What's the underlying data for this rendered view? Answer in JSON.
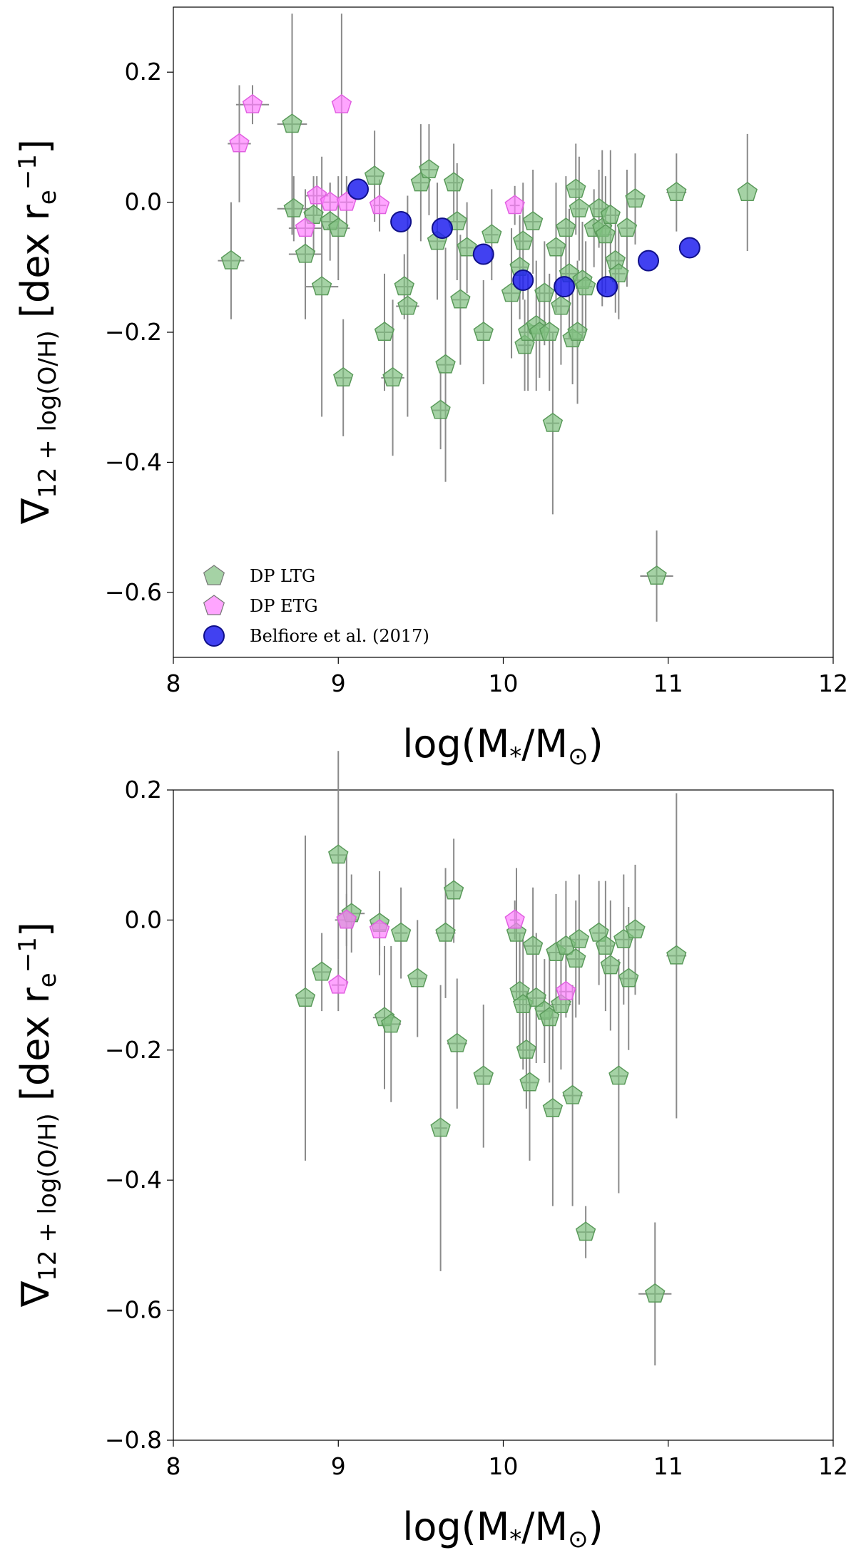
{
  "chart_data": [
    {
      "type": "scatter",
      "xlabel": {
        "main": "log(M",
        "sub1": "*",
        "mid": "/M",
        "sub2": "⊙",
        "close": ")"
      },
      "ylabel": {
        "nabla": "∇",
        "sub": "12 + log(O/H)",
        "bracket": " [dex r",
        "r_sub": "e",
        "r_sup": "−1",
        "close": "]"
      },
      "xlim": [
        8,
        12
      ],
      "ylim": [
        -0.7,
        0.3
      ],
      "xticks": [
        8,
        9,
        10,
        11,
        12
      ],
      "xtick_labels": [
        "8",
        "9",
        "10",
        "11",
        "12"
      ],
      "yticks": [
        0.2,
        0.0,
        -0.2,
        -0.4,
        -0.6
      ],
      "ytick_labels": [
        "0.2",
        "0.0",
        "−0.2",
        "−0.4",
        "−0.6"
      ],
      "legend": {
        "location": "lower-left",
        "entries": [
          {
            "label": "DP LTG",
            "marker": "pentagon",
            "color": "#7fbf7f"
          },
          {
            "label": "DP ETG",
            "marker": "pentagon",
            "color": "#ff7fff"
          },
          {
            "label": "Belfiore et al. (2017)",
            "marker": "circle",
            "color": "#2020ee"
          }
        ]
      },
      "series": [
        {
          "name": "DP LTG",
          "marker": "pentagon",
          "color": "#7fbf7f",
          "edge": "#5a9a5a",
          "points": [
            [
              8.35,
              -0.09,
              0.09,
              0.08
            ],
            [
              8.72,
              0.12,
              0.17,
              0.09
            ],
            [
              8.73,
              -0.01,
              0.05,
              0.1
            ],
            [
              8.8,
              -0.08,
              0.1,
              0.1
            ],
            [
              8.85,
              -0.02,
              0.06,
              0.05
            ],
            [
              8.9,
              -0.13,
              0.2,
              0.1
            ],
            [
              8.95,
              -0.03,
              0.06,
              0.05
            ],
            [
              9.0,
              -0.04,
              0.08,
              0.07
            ],
            [
              9.03,
              -0.27,
              0.09,
              0.05
            ],
            [
              9.22,
              0.04,
              0.07,
              0.05
            ],
            [
              9.28,
              -0.2,
              0.09,
              0.05
            ],
            [
              9.33,
              -0.27,
              0.12,
              0.07
            ],
            [
              9.4,
              -0.13,
              0.05,
              0.05
            ],
            [
              9.42,
              -0.16,
              0.17,
              0.07
            ],
            [
              9.5,
              0.03,
              0.09,
              0.05
            ],
            [
              9.55,
              0.05,
              0.07,
              0.05
            ],
            [
              9.6,
              -0.06,
              0.09,
              0.05
            ],
            [
              9.62,
              -0.32,
              0.06,
              0.05
            ],
            [
              9.65,
              -0.25,
              0.18,
              0.05
            ],
            [
              9.7,
              0.03,
              0.06,
              0.04
            ],
            [
              9.72,
              -0.03,
              0.09,
              0.05
            ],
            [
              9.74,
              -0.15,
              0.1,
              0.05
            ],
            [
              9.78,
              -0.07,
              0.07,
              0.04
            ],
            [
              9.88,
              -0.2,
              0.08,
              0.05
            ],
            [
              9.93,
              -0.05,
              0.07,
              0.04
            ],
            [
              10.05,
              -0.14,
              0.1,
              0.05
            ],
            [
              10.1,
              -0.1,
              0.08,
              0.05
            ],
            [
              10.12,
              -0.06,
              0.09,
              0.05
            ],
            [
              10.13,
              -0.22,
              0.07,
              0.04
            ],
            [
              10.15,
              -0.2,
              0.09,
              0.05
            ],
            [
              10.18,
              -0.03,
              0.08,
              0.05
            ],
            [
              10.2,
              -0.19,
              0.1,
              0.05
            ],
            [
              10.22,
              -0.2,
              0.07,
              0.05
            ],
            [
              10.25,
              -0.14,
              0.08,
              0.05
            ],
            [
              10.28,
              -0.2,
              0.09,
              0.05
            ],
            [
              10.3,
              -0.34,
              0.14,
              0.04
            ],
            [
              10.32,
              -0.07,
              0.1,
              0.05
            ],
            [
              10.35,
              -0.16,
              0.09,
              0.05
            ],
            [
              10.38,
              -0.04,
              0.08,
              0.05
            ],
            [
              10.4,
              -0.11,
              0.1,
              0.05
            ],
            [
              10.42,
              -0.21,
              0.07,
              0.05
            ],
            [
              10.44,
              0.02,
              0.07,
              0.04
            ],
            [
              10.45,
              -0.2,
              0.11,
              0.05
            ],
            [
              10.46,
              -0.01,
              0.08,
              0.04
            ],
            [
              10.48,
              -0.12,
              0.09,
              0.05
            ],
            [
              10.5,
              -0.13,
              0.07,
              0.04
            ],
            [
              10.55,
              -0.04,
              0.06,
              0.04
            ],
            [
              10.58,
              -0.01,
              0.06,
              0.04
            ],
            [
              10.6,
              -0.04,
              0.12,
              0.05
            ],
            [
              10.62,
              -0.05,
              0.09,
              0.04
            ],
            [
              10.65,
              -0.02,
              0.1,
              0.05
            ],
            [
              10.68,
              -0.09,
              0.08,
              0.05
            ],
            [
              10.7,
              -0.11,
              0.07,
              0.04
            ],
            [
              10.75,
              -0.04,
              0.09,
              0.04
            ],
            [
              10.8,
              0.005,
              0.07,
              0.05
            ],
            [
              10.93,
              -0.575,
              0.07,
              0.1
            ],
            [
              11.05,
              0.015,
              0.06,
              0.06
            ],
            [
              11.48,
              0.015,
              0.09,
              0.0
            ]
          ]
        },
        {
          "name": "DP ETG",
          "marker": "pentagon",
          "color": "#ff7fff",
          "edge": "#e060e0",
          "points": [
            [
              8.4,
              0.09,
              0.09,
              0.07
            ],
            [
              8.48,
              0.15,
              0.03,
              0.1
            ],
            [
              8.8,
              -0.04,
              0.05,
              0.1
            ],
            [
              8.87,
              0.01,
              0.03,
              0.07
            ],
            [
              8.95,
              0.0,
              0.03,
              0.04
            ],
            [
              9.02,
              0.15,
              0.14,
              0.0
            ],
            [
              9.05,
              0.0,
              0.04,
              0.04
            ],
            [
              9.25,
              -0.005,
              0.04,
              0.04
            ],
            [
              10.07,
              -0.005,
              0.03,
              0.03
            ]
          ]
        },
        {
          "name": "Belfiore et al. (2017)",
          "marker": "circle",
          "color": "#2020ee",
          "edge": "#10108a",
          "points": [
            [
              9.12,
              0.02
            ],
            [
              9.38,
              -0.03
            ],
            [
              9.63,
              -0.04
            ],
            [
              9.88,
              -0.08
            ],
            [
              10.12,
              -0.12
            ],
            [
              10.37,
              -0.13
            ],
            [
              10.63,
              -0.13
            ],
            [
              10.88,
              -0.09
            ],
            [
              11.13,
              -0.07
            ]
          ]
        }
      ]
    },
    {
      "type": "scatter",
      "xlabel": {
        "main": "log(M",
        "sub1": "*",
        "mid": "/M",
        "sub2": "⊙",
        "close": ")"
      },
      "ylabel": {
        "nabla": "∇",
        "sub": "12 + log(O/H)",
        "bracket": " [dex r",
        "r_sub": "e",
        "r_sup": "−1",
        "close": "]"
      },
      "xlim": [
        8,
        12
      ],
      "ylim": [
        -0.8,
        0.2
      ],
      "xticks": [
        8,
        9,
        10,
        11,
        12
      ],
      "xtick_labels": [
        "8",
        "9",
        "10",
        "11",
        "12"
      ],
      "yticks": [
        0.2,
        0.0,
        -0.2,
        -0.4,
        -0.6,
        -0.8
      ],
      "ytick_labels": [
        "0.2",
        "0.0",
        "−0.2",
        "−0.4",
        "−0.6",
        "−0.8"
      ],
      "series": [
        {
          "name": "DP LTG",
          "marker": "pentagon",
          "color": "#7fbf7f",
          "edge": "#5a9a5a",
          "points": [
            [
              8.8,
              -0.12,
              0.25,
              0.05
            ],
            [
              8.9,
              -0.08,
              0.06,
              0.05
            ],
            [
              9.0,
              0.1,
              0.16,
              0.05
            ],
            [
              9.05,
              -0.0,
              0.1,
              0.07
            ],
            [
              9.08,
              0.01,
              0.06,
              0.08
            ],
            [
              9.25,
              -0.005,
              0.08,
              0.05
            ],
            [
              9.28,
              -0.15,
              0.11,
              0.07
            ],
            [
              9.32,
              -0.16,
              0.12,
              0.06
            ],
            [
              9.38,
              -0.02,
              0.07,
              0.04
            ],
            [
              9.48,
              -0.09,
              0.09,
              0.05
            ],
            [
              9.62,
              -0.32,
              0.22,
              0.04
            ],
            [
              9.65,
              -0.02,
              0.1,
              0.06
            ],
            [
              9.7,
              0.045,
              0.08,
              0.05
            ],
            [
              9.72,
              -0.19,
              0.1,
              0.06
            ],
            [
              9.88,
              -0.24,
              0.11,
              0.05
            ],
            [
              10.08,
              -0.02,
              0.1,
              0.05
            ],
            [
              10.1,
              -0.11,
              0.09,
              0.05
            ],
            [
              10.12,
              -0.13,
              0.1,
              0.05
            ],
            [
              10.14,
              -0.2,
              0.09,
              0.05
            ],
            [
              10.16,
              -0.25,
              0.12,
              0.05
            ],
            [
              10.18,
              -0.04,
              0.09,
              0.05
            ],
            [
              10.2,
              -0.12,
              0.1,
              0.06
            ],
            [
              10.25,
              -0.14,
              0.08,
              0.05
            ],
            [
              10.28,
              -0.15,
              0.1,
              0.05
            ],
            [
              10.3,
              -0.29,
              0.15,
              0.05
            ],
            [
              10.32,
              -0.05,
              0.09,
              0.05
            ],
            [
              10.35,
              -0.13,
              0.1,
              0.06
            ],
            [
              10.38,
              -0.04,
              0.1,
              0.05
            ],
            [
              10.42,
              -0.27,
              0.17,
              0.06
            ],
            [
              10.44,
              -0.06,
              0.09,
              0.05
            ],
            [
              10.46,
              -0.03,
              0.1,
              0.05
            ],
            [
              10.5,
              -0.48,
              0.04,
              0.05
            ],
            [
              10.58,
              -0.02,
              0.08,
              0.04
            ],
            [
              10.62,
              -0.04,
              0.1,
              0.05
            ],
            [
              10.65,
              -0.07,
              0.1,
              0.05
            ],
            [
              10.7,
              -0.24,
              0.18,
              0.05
            ],
            [
              10.73,
              -0.03,
              0.1,
              0.05
            ],
            [
              10.76,
              -0.09,
              0.11,
              0.05
            ],
            [
              10.8,
              -0.015,
              0.1,
              0.05
            ],
            [
              10.92,
              -0.575,
              0.11,
              0.1
            ],
            [
              11.05,
              -0.055,
              0.25,
              0.06
            ]
          ]
        },
        {
          "name": "DP ETG",
          "marker": "pentagon",
          "color": "#ff7fff",
          "edge": "#e060e0",
          "points": [
            [
              9.0,
              -0.1,
              0.04,
              0.04
            ],
            [
              9.05,
              0.0,
              0.04,
              0.04
            ],
            [
              9.25,
              -0.015,
              0.04,
              0.04
            ],
            [
              10.07,
              0.0,
              0.03,
              0.03
            ],
            [
              10.38,
              -0.11,
              0.04,
              0.04
            ]
          ]
        }
      ]
    }
  ]
}
